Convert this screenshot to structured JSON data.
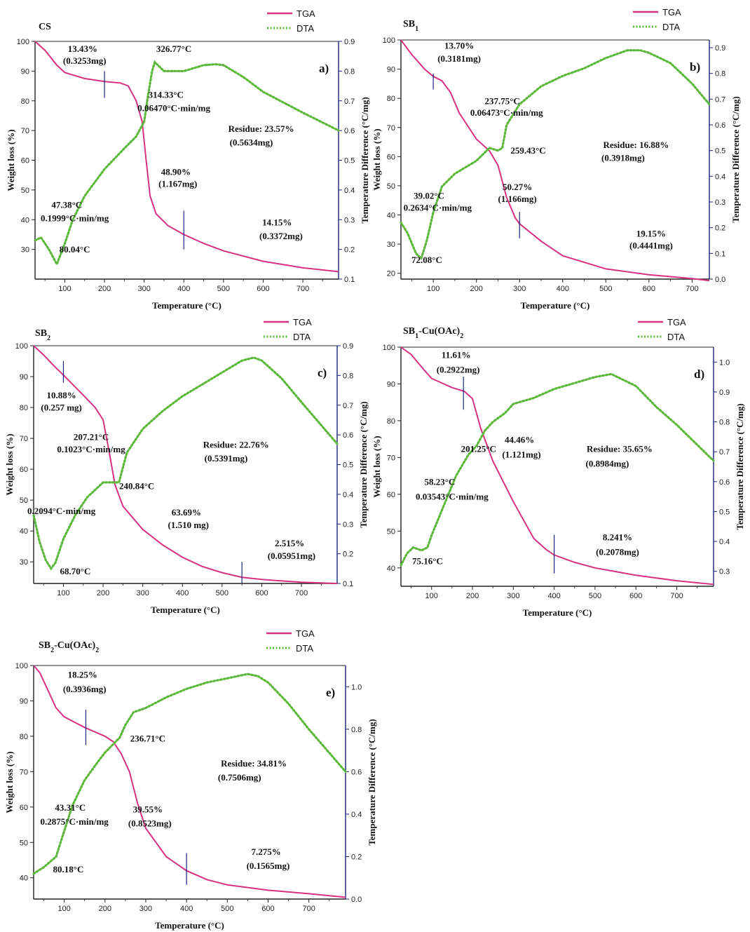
{
  "legend": {
    "tga": "TGA",
    "dta": "DTA"
  },
  "colors": {
    "tga": "#d6317f",
    "dta": "#5cb83a",
    "axis": "#1a237e"
  },
  "chart_data": [
    {
      "type": "line",
      "id": "a",
      "panel_label": "a)",
      "title": "CS",
      "xlabel": "Temperature (°C)",
      "ylabel": "Weight loss (%)",
      "y2label": "Temperature Difference (°C/mg)",
      "xlim": [
        25,
        790
      ],
      "xticks": [
        100,
        200,
        300,
        400,
        500,
        600,
        700
      ],
      "ylim": [
        20,
        100
      ],
      "yticks": [
        30,
        40,
        50,
        60,
        70,
        80,
        90,
        100
      ],
      "y2lim": [
        0.1,
        0.9
      ],
      "y2ticks": [
        0.1,
        0.2,
        0.3,
        0.4,
        0.5,
        0.6,
        0.7,
        0.8,
        0.9
      ],
      "series": [
        {
          "name": "TGA",
          "x": [
            25,
            50,
            80,
            100,
            150,
            200,
            240,
            260,
            280,
            295,
            305,
            315,
            330,
            360,
            400,
            450,
            500,
            600,
            700,
            790
          ],
          "y": [
            100,
            97,
            92,
            89.5,
            87.5,
            86.5,
            86,
            85,
            80,
            73,
            60,
            48,
            42,
            38,
            35,
            32,
            29.5,
            26,
            23.8,
            22.5
          ]
        },
        {
          "name": "DTA",
          "x": [
            25,
            40,
            60,
            80,
            100,
            120,
            150,
            200,
            250,
            280,
            300,
            310,
            320,
            327,
            350,
            400,
            450,
            480,
            500,
            550,
            600,
            700,
            790
          ],
          "y": [
            0.23,
            0.24,
            0.2,
            0.15,
            0.22,
            0.3,
            0.38,
            0.47,
            0.54,
            0.58,
            0.63,
            0.72,
            0.8,
            0.83,
            0.8,
            0.8,
            0.82,
            0.823,
            0.82,
            0.78,
            0.73,
            0.66,
            0.6
          ]
        }
      ],
      "markers": [
        {
          "x": 200,
          "y1": 81,
          "y2": 90
        },
        {
          "x": 400,
          "y1": 30,
          "y2": 43
        }
      ],
      "annotations": [
        {
          "text": "13.43%",
          "x": 145,
          "y": 96.5
        },
        {
          "text": "(0.3253mg)",
          "x": 150,
          "y": 92.5
        },
        {
          "text": "326.77°C",
          "x": 375,
          "y": 96.5
        },
        {
          "text": "314.33°C",
          "x": 355,
          "y": 81
        },
        {
          "text": "0.06470°C·min/mg",
          "x": 375,
          "y": 76.5
        },
        {
          "text": "Residue: 23.57%",
          "x": 595,
          "y": 69.5
        },
        {
          "text": "(0.5634mg)",
          "x": 570,
          "y": 65
        },
        {
          "text": "48.90%",
          "x": 380,
          "y": 55
        },
        {
          "text": "(1.167mg)",
          "x": 385,
          "y": 51
        },
        {
          "text": "47.38°C",
          "x": 105,
          "y": 44
        },
        {
          "text": "0.1999°C·min/mg",
          "x": 125,
          "y": 39.5
        },
        {
          "text": "14.15%",
          "x": 635,
          "y": 38
        },
        {
          "text": "(0.3372mg)",
          "x": 645,
          "y": 33.5
        },
        {
          "text": "80.04°C",
          "x": 125,
          "y": 29
        }
      ]
    },
    {
      "type": "line",
      "id": "b",
      "panel_label": "b)",
      "title": "SB",
      "title_sub": "1",
      "xlabel": "Temperature (°C)",
      "ylabel": "Weight loss (%)",
      "y2label": "Temperature Difference (°C/mg)",
      "xlim": [
        25,
        740
      ],
      "xticks": [
        100,
        200,
        300,
        400,
        500,
        600,
        700
      ],
      "ylim": [
        18,
        100
      ],
      "yticks": [
        20,
        30,
        40,
        50,
        60,
        70,
        80,
        90,
        100
      ],
      "y2lim": [
        0.0,
        0.93
      ],
      "y2ticks": [
        0.0,
        0.1,
        0.2,
        0.3,
        0.4,
        0.5,
        0.6,
        0.7,
        0.8,
        0.9
      ],
      "series": [
        {
          "name": "TGA",
          "x": [
            25,
            50,
            80,
            100,
            120,
            140,
            160,
            200,
            230,
            250,
            270,
            290,
            300,
            350,
            400,
            500,
            600,
            700,
            740
          ],
          "y": [
            100,
            95,
            90,
            87.5,
            86,
            82,
            75,
            66,
            62,
            57,
            46,
            39,
            37,
            31,
            26,
            21.5,
            19.5,
            18.2,
            17.5
          ]
        },
        {
          "name": "DTA",
          "x": [
            25,
            40,
            60,
            72,
            85,
            100,
            120,
            150,
            200,
            230,
            250,
            260,
            270,
            300,
            350,
            400,
            450,
            500,
            550,
            580,
            600,
            650,
            700,
            740
          ],
          "y": [
            0.22,
            0.18,
            0.1,
            0.08,
            0.15,
            0.26,
            0.36,
            0.41,
            0.46,
            0.51,
            0.5,
            0.51,
            0.6,
            0.68,
            0.75,
            0.79,
            0.82,
            0.86,
            0.89,
            0.89,
            0.88,
            0.84,
            0.76,
            0.68
          ]
        }
      ],
      "markers": [
        {
          "x": 100,
          "y1": 83,
          "y2": 88.5
        },
        {
          "x": 300,
          "y1": 32,
          "y2": 41
        }
      ],
      "annotations": [
        {
          "text": "13.70%",
          "x": 160,
          "y": 97
        },
        {
          "text": "(0.3181mg)",
          "x": 160,
          "y": 92.5
        },
        {
          "text": "237.75°C",
          "x": 260,
          "y": 78
        },
        {
          "text": "0.06473°C·min/mg",
          "x": 270,
          "y": 74
        },
        {
          "text": "259.43°C",
          "x": 320,
          "y": 61
        },
        {
          "text": "Residue: 16.88%",
          "x": 570,
          "y": 63
        },
        {
          "text": "(0.3918mg)",
          "x": 540,
          "y": 58.5
        },
        {
          "text": "39.02°C",
          "x": 90,
          "y": 45.5
        },
        {
          "text": "0.2634°C·min/mg",
          "x": 110,
          "y": 41.5
        },
        {
          "text": "50.27%",
          "x": 295,
          "y": 48.5
        },
        {
          "text": "(1.166mg)",
          "x": 295,
          "y": 44.5
        },
        {
          "text": "19.15%",
          "x": 605,
          "y": 32.5
        },
        {
          "text": "(0.4441mg)",
          "x": 605,
          "y": 28.5
        },
        {
          "text": "72.08°C",
          "x": 85,
          "y": 23.5
        }
      ]
    },
    {
      "type": "line",
      "id": "c",
      "panel_label": "c)",
      "title": "SB",
      "title_sub": "2",
      "xlabel": "Temperature (°C)",
      "ylabel": "Weight loss (%)",
      "y2label": "Temperature Difference (°C/mg)",
      "xlim": [
        25,
        790
      ],
      "xticks": [
        100,
        200,
        300,
        400,
        500,
        600,
        700
      ],
      "ylim": [
        23,
        100
      ],
      "yticks": [
        30,
        40,
        50,
        60,
        70,
        80,
        90,
        100
      ],
      "y2lim": [
        0.1,
        0.9
      ],
      "y2ticks": [
        0.1,
        0.2,
        0.3,
        0.4,
        0.5,
        0.6,
        0.7,
        0.8,
        0.9
      ],
      "series": [
        {
          "name": "TGA",
          "x": [
            25,
            50,
            80,
            100,
            150,
            180,
            200,
            215,
            230,
            250,
            300,
            350,
            400,
            450,
            500,
            550,
            600,
            700,
            790
          ],
          "y": [
            100,
            97,
            93,
            90.5,
            84,
            80,
            76,
            66,
            55,
            48,
            40.5,
            35.5,
            31.5,
            28.5,
            26.5,
            25,
            24.3,
            23.4,
            23
          ]
        },
        {
          "name": "DTA",
          "x": [
            25,
            40,
            55,
            69,
            80,
            100,
            130,
            160,
            200,
            220,
            240,
            260,
            300,
            350,
            400,
            450,
            500,
            550,
            580,
            600,
            650,
            700,
            790
          ],
          "y": [
            0.33,
            0.24,
            0.18,
            0.15,
            0.17,
            0.25,
            0.33,
            0.39,
            0.44,
            0.44,
            0.44,
            0.54,
            0.62,
            0.68,
            0.73,
            0.77,
            0.81,
            0.85,
            0.86,
            0.85,
            0.79,
            0.71,
            0.57
          ]
        }
      ],
      "markers": [
        {
          "x": 100,
          "y1": 88,
          "y2": 95
        },
        {
          "x": 550,
          "y1": 23,
          "y2": 30
        }
      ],
      "annotations": [
        {
          "text": "10.88%",
          "x": 95,
          "y": 83
        },
        {
          "text": "(0.257 mg)",
          "x": 95,
          "y": 79
        },
        {
          "text": "207.21°C",
          "x": 170,
          "y": 69.5
        },
        {
          "text": "0.1023°C·min/mg",
          "x": 170,
          "y": 65.5
        },
        {
          "text": "Residue: 22.76%",
          "x": 535,
          "y": 67
        },
        {
          "text": "(0.5391mg)",
          "x": 510,
          "y": 62.5
        },
        {
          "text": "240.84°C",
          "x": 285,
          "y": 53.5
        },
        {
          "text": "0.2094°C·min/mg",
          "x": 95,
          "y": 45.5
        },
        {
          "text": "63.69%",
          "x": 410,
          "y": 45
        },
        {
          "text": "(1.510 mg)",
          "x": 415,
          "y": 41
        },
        {
          "text": "2.515%",
          "x": 670,
          "y": 35
        },
        {
          "text": "(0.05951mg)",
          "x": 675,
          "y": 31
        },
        {
          "text": "68.70°C",
          "x": 130,
          "y": 26
        }
      ]
    },
    {
      "type": "line",
      "id": "d",
      "panel_label": "d)",
      "title": "SB",
      "title_sub": "1",
      "title_suffix": "-Cu(OAc)",
      "title_suffix_sub": "2",
      "xlabel": "Temperature (°C)",
      "ylabel": "Weight loss (%)",
      "y2label": "Temperature Difference (°C/mg)",
      "xlim": [
        25,
        790
      ],
      "xticks": [
        100,
        200,
        300,
        400,
        500,
        600,
        700
      ],
      "ylim": [
        35,
        100
      ],
      "yticks": [
        40,
        50,
        60,
        70,
        80,
        90,
        100
      ],
      "y2lim": [
        0.25,
        1.05
      ],
      "y2ticks": [
        0.3,
        0.4,
        0.5,
        0.6,
        0.7,
        0.8,
        0.9,
        1.0
      ],
      "series": [
        {
          "name": "TGA",
          "x": [
            25,
            50,
            80,
            100,
            150,
            180,
            200,
            220,
            250,
            300,
            350,
            380,
            400,
            450,
            500,
            600,
            700,
            790
          ],
          "y": [
            100,
            98,
            94,
            91.5,
            89,
            88,
            86,
            78,
            69,
            58,
            48,
            45,
            43.5,
            41.5,
            40,
            38,
            36.5,
            35.5
          ]
        },
        {
          "name": "DTA",
          "x": [
            25,
            40,
            55,
            75,
            90,
            100,
            130,
            160,
            190,
            210,
            230,
            250,
            280,
            300,
            350,
            400,
            450,
            500,
            540,
            600,
            650,
            700,
            790
          ],
          "y": [
            0.32,
            0.36,
            0.38,
            0.37,
            0.38,
            0.42,
            0.52,
            0.62,
            0.69,
            0.72,
            0.77,
            0.8,
            0.83,
            0.86,
            0.88,
            0.91,
            0.93,
            0.95,
            0.96,
            0.92,
            0.85,
            0.79,
            0.67
          ]
        }
      ],
      "markers": [
        {
          "x": 178,
          "y1": 83,
          "y2": 92
        },
        {
          "x": 400,
          "y1": 38.5,
          "y2": 49
        }
      ],
      "annotations": [
        {
          "text": "11.61%",
          "x": 160,
          "y": 97
        },
        {
          "text": "(0.2922mg)",
          "x": 165,
          "y": 93
        },
        {
          "text": "44.46%",
          "x": 315,
          "y": 74
        },
        {
          "text": "(1.121mg)",
          "x": 320,
          "y": 70
        },
        {
          "text": "201.25°C",
          "x": 215,
          "y": 71.5
        },
        {
          "text": "Residue: 35.65%",
          "x": 560,
          "y": 71.5
        },
        {
          "text": "(0.8984mg)",
          "x": 530,
          "y": 67.5
        },
        {
          "text": "58.23°C",
          "x": 120,
          "y": 62.5
        },
        {
          "text": "0.03543°C·min/mg",
          "x": 150,
          "y": 58.5
        },
        {
          "text": "8.241%",
          "x": 555,
          "y": 47.5
        },
        {
          "text": "(0.2078mg)",
          "x": 555,
          "y": 43.5
        },
        {
          "text": "75.16°C",
          "x": 90,
          "y": 41
        }
      ]
    },
    {
      "type": "line",
      "id": "e",
      "panel_label": "e)",
      "title": "SB",
      "title_sub": "2",
      "title_suffix": "-Cu(OAc)",
      "title_suffix_sub": "2",
      "xlabel": "Temperature (°C)",
      "ylabel": "Weight loss (%)",
      "y2label": "Temperature Difference (°C/mg)",
      "xlim": [
        25,
        790
      ],
      "xticks": [
        100,
        200,
        300,
        400,
        500,
        600,
        700
      ],
      "ylim": [
        34,
        100
      ],
      "yticks": [
        40,
        50,
        60,
        70,
        80,
        90,
        100
      ],
      "y2lim": [
        0.0,
        1.1
      ],
      "y2ticks": [
        0.0,
        0.2,
        0.4,
        0.6,
        0.8,
        1.0
      ],
      "series": [
        {
          "name": "TGA",
          "x": [
            25,
            40,
            60,
            80,
            100,
            150,
            200,
            220,
            240,
            260,
            280,
            300,
            350,
            400,
            450,
            500,
            600,
            700,
            790
          ],
          "y": [
            100,
            98,
            93,
            88,
            85.5,
            82.5,
            80,
            78.5,
            75,
            70,
            61,
            54,
            46,
            42,
            39.5,
            38,
            36.5,
            35.5,
            34.5
          ]
        },
        {
          "name": "DTA",
          "x": [
            25,
            50,
            80,
            100,
            120,
            150,
            180,
            200,
            236,
            250,
            270,
            300,
            350,
            400,
            450,
            500,
            550,
            575,
            600,
            650,
            700,
            790
          ],
          "y": [
            0.12,
            0.15,
            0.2,
            0.32,
            0.44,
            0.56,
            0.64,
            0.69,
            0.76,
            0.82,
            0.88,
            0.9,
            0.95,
            0.99,
            1.02,
            1.04,
            1.06,
            1.05,
            1.02,
            0.92,
            0.8,
            0.6
          ]
        }
      ],
      "markers": [
        {
          "x": 153,
          "y1": 77.5,
          "y2": 87.5
        },
        {
          "x": 400,
          "y1": 38,
          "y2": 47
        }
      ],
      "annotations": [
        {
          "text": "18.25%",
          "x": 145,
          "y": 96.5
        },
        {
          "text": "(0.3936mg)",
          "x": 150,
          "y": 92.5
        },
        {
          "text": "236.71°C",
          "x": 305,
          "y": 78.5
        },
        {
          "text": "Residue: 34.81%",
          "x": 565,
          "y": 71.5
        },
        {
          "text": "(0.7506mg)",
          "x": 530,
          "y": 67.5
        },
        {
          "text": "43.31°C",
          "x": 115,
          "y": 59
        },
        {
          "text": "0.2875°C·min/mg",
          "x": 125,
          "y": 55
        },
        {
          "text": "39.55%",
          "x": 305,
          "y": 58.5
        },
        {
          "text": "(0.8523mg)",
          "x": 310,
          "y": 54.5
        },
        {
          "text": "7.275%",
          "x": 595,
          "y": 46.5
        },
        {
          "text": "(0.1565mg)",
          "x": 600,
          "y": 42.5
        },
        {
          "text": "80.18°C",
          "x": 110,
          "y": 41.5
        }
      ]
    }
  ]
}
